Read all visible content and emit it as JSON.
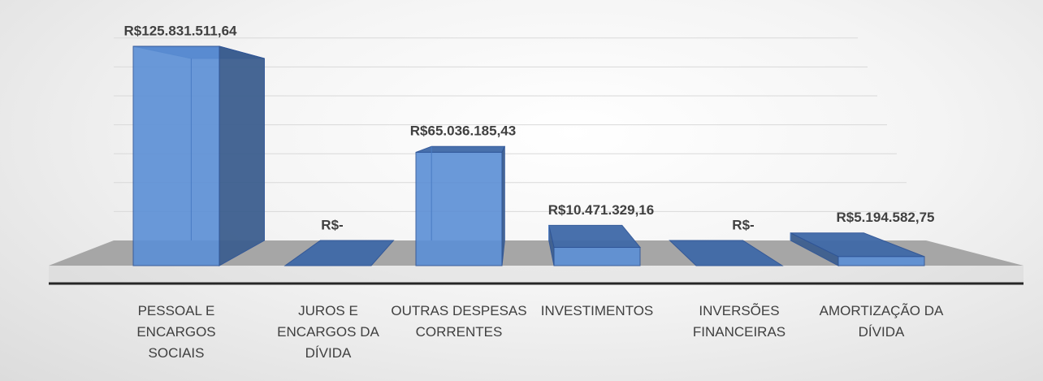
{
  "chart_data": {
    "type": "bar3d",
    "categories": [
      "PESSOAL E ENCARGOS SOCIAIS",
      "JUROS E ENCARGOS DA DÍVIDA",
      "OUTRAS DESPESAS CORRENTES",
      "INVESTIMENTOS",
      "INVERSÕES FINANCEIRAS",
      "AMORTIZAÇÃO DA DÍVIDA"
    ],
    "values": [
      125831511.64,
      0,
      65036185.43,
      10471329.16,
      0,
      5194582.75
    ],
    "value_labels": [
      "R$125.831.511,64",
      "R$-",
      "R$65.036.185,43",
      "R$10.471.329,16",
      "R$-",
      "R$5.194.582,75"
    ],
    "color": "#5b8fd6",
    "ylim": [
      0,
      140000000
    ],
    "yticks": [
      0,
      20000000,
      40000000,
      60000000,
      80000000,
      100000000,
      120000000,
      140000000
    ],
    "grid": true
  }
}
